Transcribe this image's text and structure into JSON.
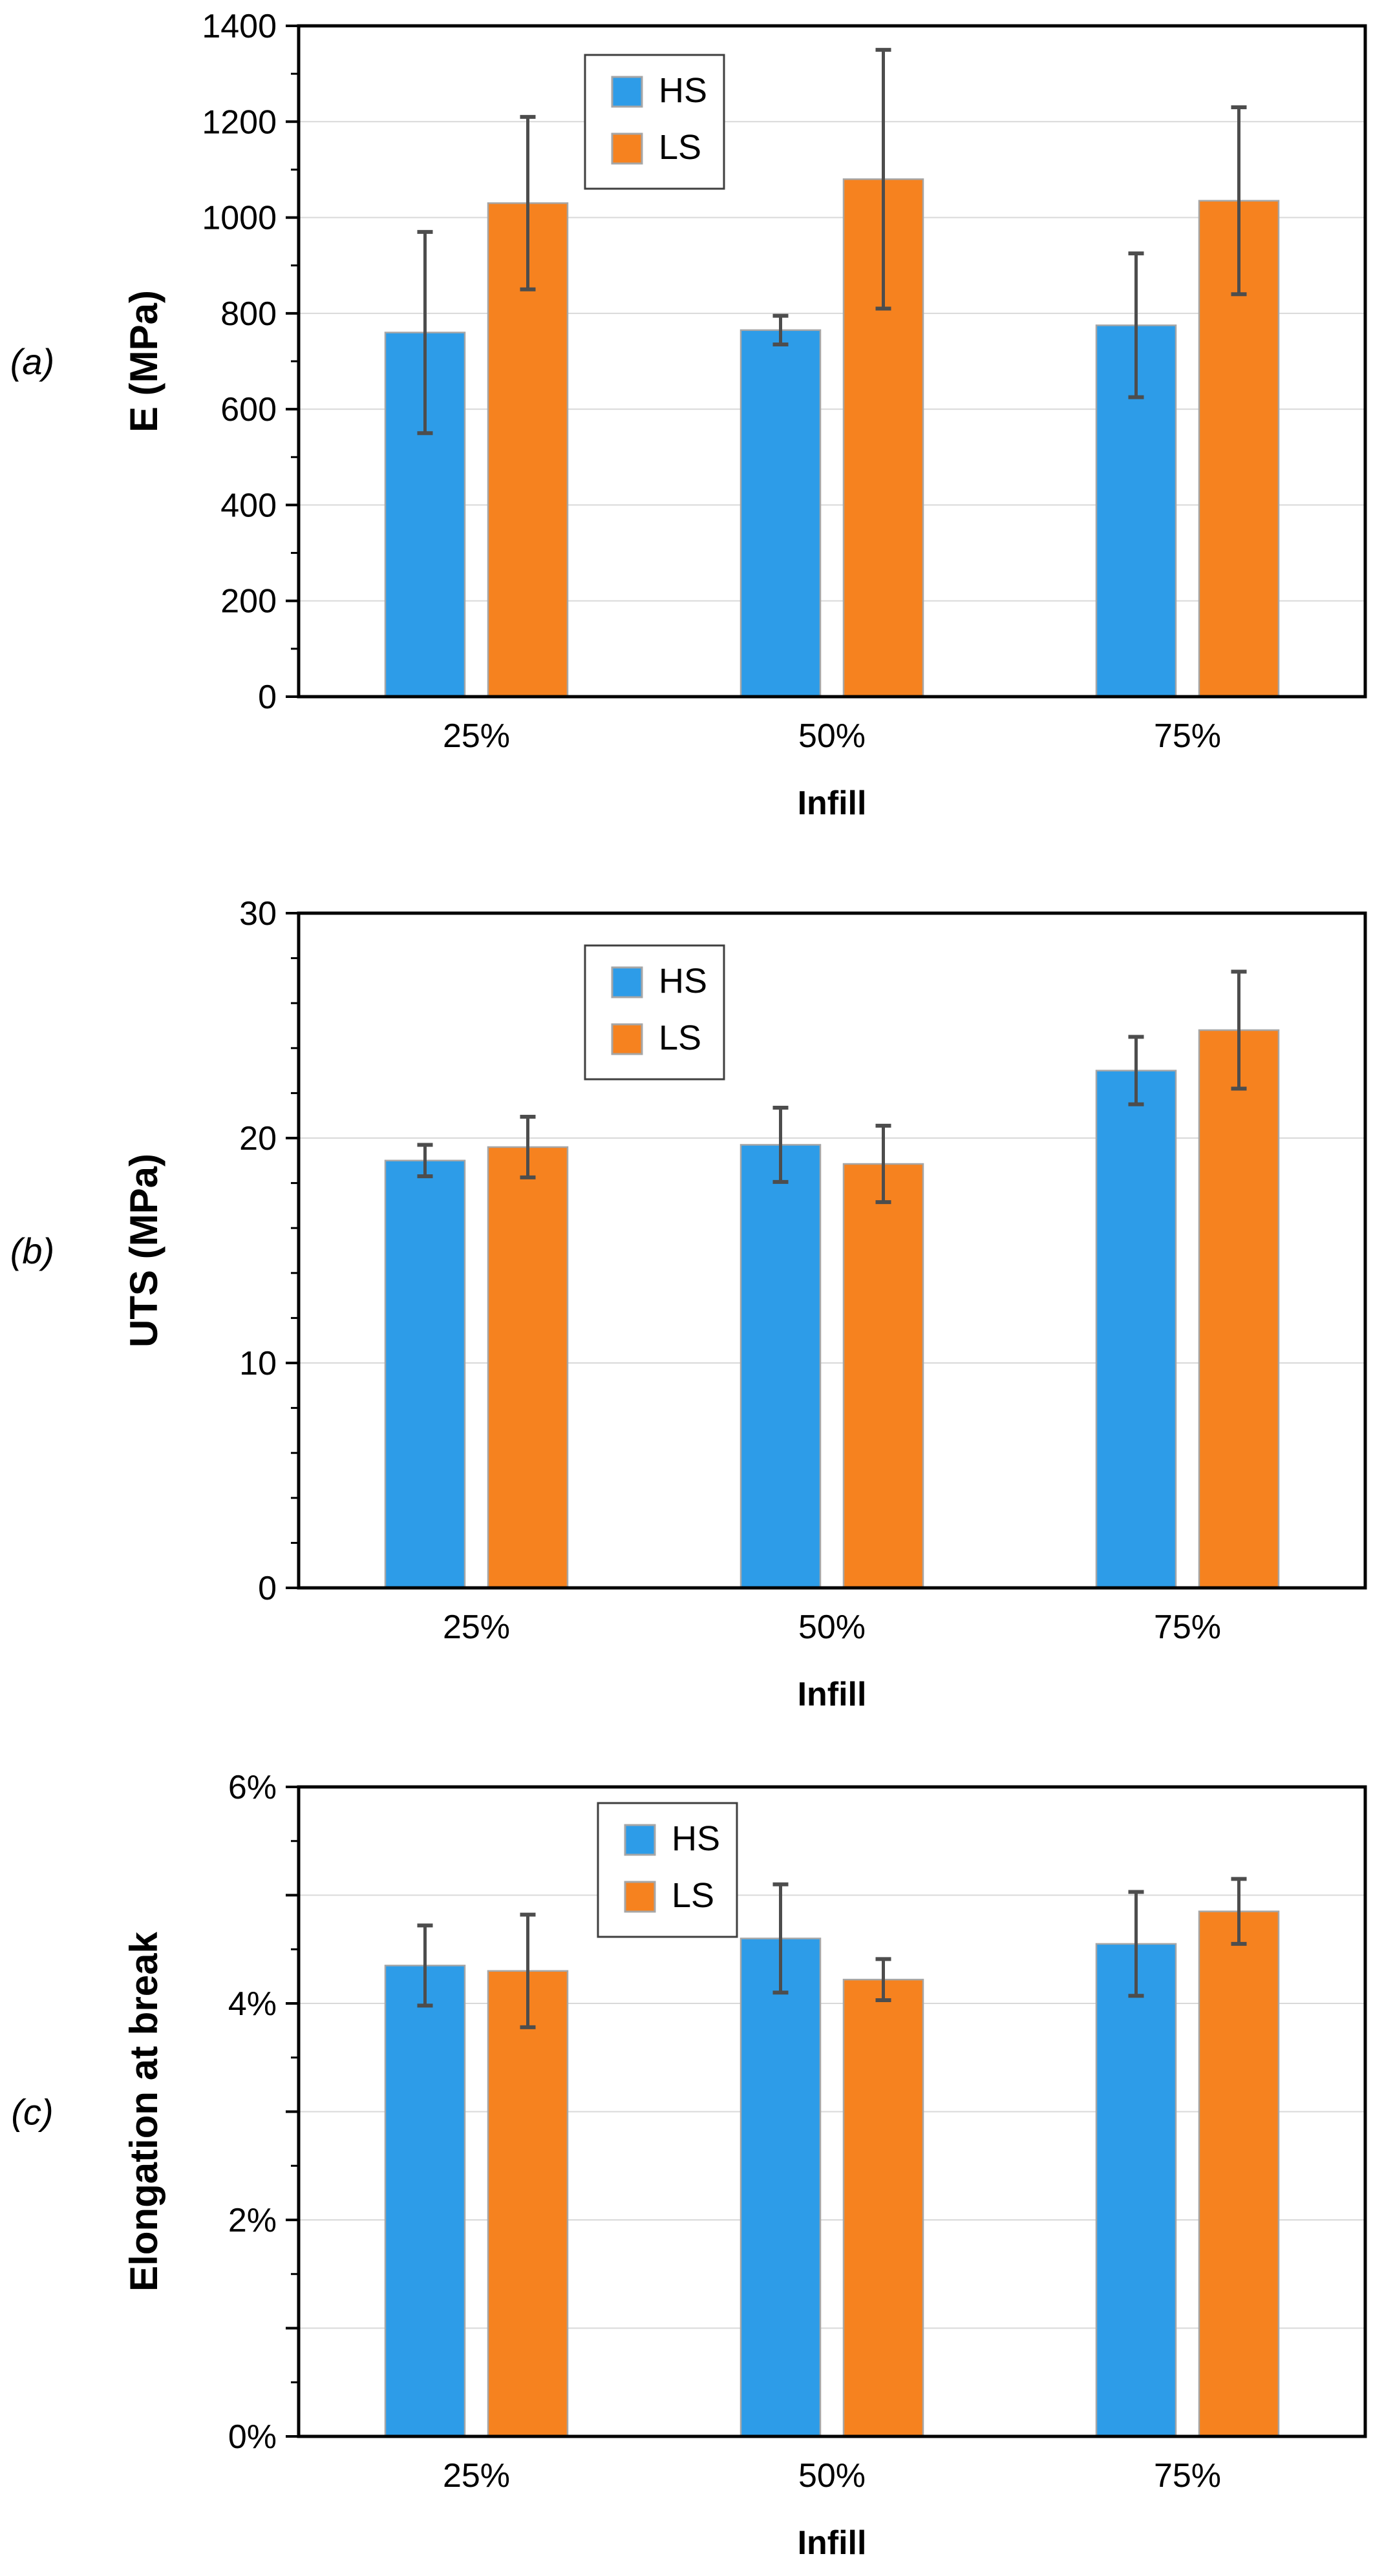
{
  "colors": {
    "hs_fill": "#2D9CE8",
    "ls_fill": "#F6821F",
    "bar_outline": "#A6A6A6",
    "error_bar": "#4D4D4D",
    "gridline": "#D9D9D9",
    "axis_border": "#000000",
    "legend_border": "#3F3F3F",
    "background": "#FFFFFF",
    "text": "#000000"
  },
  "chart_data": [
    {
      "type": "bar",
      "panel_label": "(a)",
      "xlabel": "Infill",
      "ylabel": "E (MPa)",
      "categories": [
        "25%",
        "50%",
        "75%"
      ],
      "ylim": [
        0,
        1400
      ],
      "ytick_labels": [
        "0",
        "200",
        "400",
        "600",
        "800",
        "1000",
        "1200",
        "1400"
      ],
      "label_step": 200,
      "grid_step": 200,
      "minor_step": 100,
      "grid": true,
      "legend_position": "top-center",
      "series": [
        {
          "name": "HS",
          "values": [
            760,
            765,
            775
          ],
          "errors": [
            210,
            30,
            150
          ]
        },
        {
          "name": "LS",
          "values": [
            1030,
            1080,
            1035
          ],
          "errors": [
            180,
            270,
            195
          ]
        }
      ]
    },
    {
      "type": "bar",
      "panel_label": "(b)",
      "xlabel": "Infill",
      "ylabel": "UTS (MPa)",
      "categories": [
        "25%",
        "50%",
        "75%"
      ],
      "ylim": [
        0,
        30
      ],
      "ytick_labels": [
        "0",
        "10",
        "20",
        "30"
      ],
      "label_step": 10,
      "grid_step": 10,
      "minor_step": 2,
      "grid": true,
      "legend_position": "top-center",
      "series": [
        {
          "name": "HS",
          "values": [
            19.0,
            19.7,
            23.0
          ],
          "errors": [
            0.7,
            1.65,
            1.5
          ]
        },
        {
          "name": "LS",
          "values": [
            19.6,
            18.85,
            24.8
          ],
          "errors": [
            1.35,
            1.7,
            2.6
          ]
        }
      ]
    },
    {
      "type": "bar",
      "panel_label": "(c)",
      "xlabel": "Infill",
      "ylabel": "Elongation at break",
      "categories": [
        "25%",
        "50%",
        "75%"
      ],
      "ylim": [
        0,
        6
      ],
      "ytick_labels": [
        "0%",
        "2%",
        "4%",
        "6%"
      ],
      "label_step": 2,
      "grid_step": 1,
      "minor_step": 0.5,
      "grid": true,
      "legend_position": "top-center",
      "series": [
        {
          "name": "HS",
          "values": [
            4.35,
            4.6,
            4.55
          ],
          "errors": [
            0.37,
            0.5,
            0.48
          ]
        },
        {
          "name": "LS",
          "values": [
            4.3,
            4.22,
            4.85
          ],
          "errors": [
            0.52,
            0.19,
            0.3
          ]
        }
      ]
    }
  ]
}
